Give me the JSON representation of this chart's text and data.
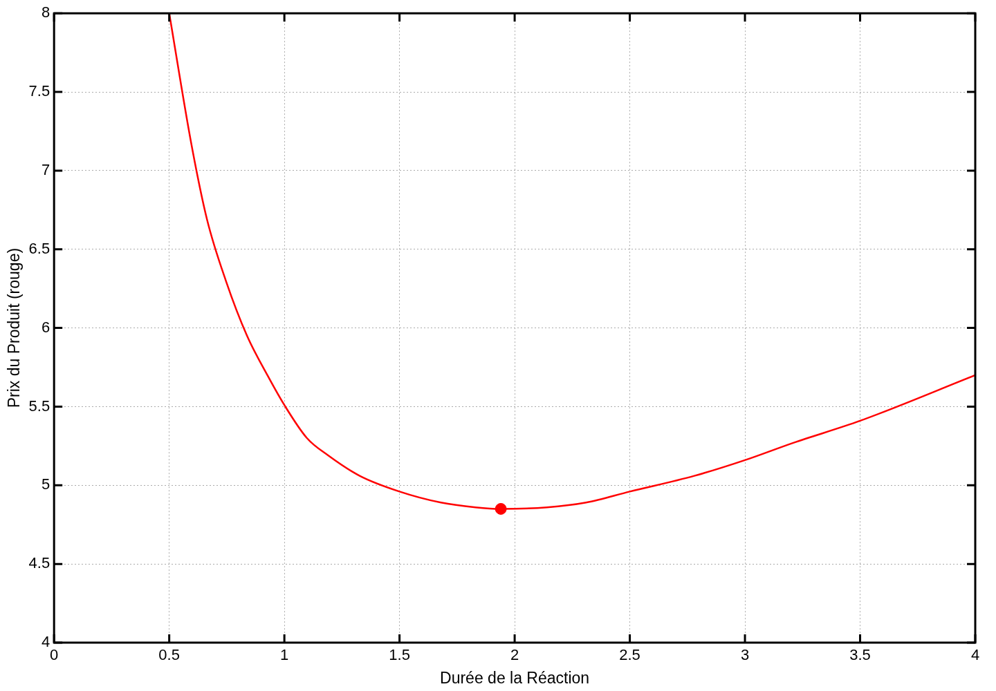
{
  "chart_data": {
    "type": "line",
    "xlabel": "Durée de la Réaction",
    "ylabel": "Prix du Produit (rouge)",
    "xlim": [
      0,
      4
    ],
    "ylim": [
      4,
      8
    ],
    "xticks": [
      0,
      0.5,
      1,
      1.5,
      2,
      2.5,
      3,
      3.5,
      4
    ],
    "yticks": [
      4,
      4.5,
      5,
      5.5,
      6,
      6.5,
      7,
      7.5,
      8
    ],
    "grid": true,
    "legend": false,
    "series": [
      {
        "color": "#ff0000",
        "marker": "none",
        "line_style": "solid",
        "x": [
          0.5,
          0.596,
          0.664,
          0.746,
          0.838,
          0.93,
          1.0,
          1.098,
          1.19,
          1.327,
          1.5,
          1.68,
          1.83,
          1.94,
          2.14,
          2.31,
          2.5,
          2.78,
          3.0,
          3.21,
          3.5,
          4.0
        ],
        "values": [
          8.0,
          7.17,
          6.69,
          6.3,
          5.95,
          5.69,
          5.51,
          5.3,
          5.19,
          5.06,
          4.96,
          4.89,
          4.86,
          4.85,
          4.86,
          4.89,
          4.96,
          5.06,
          5.16,
          5.27,
          5.41,
          5.7
        ]
      },
      {
        "type": "scatter",
        "color": "#ff0000",
        "marker": "circle",
        "x": [
          1.94
        ],
        "values": [
          4.85
        ]
      }
    ]
  }
}
